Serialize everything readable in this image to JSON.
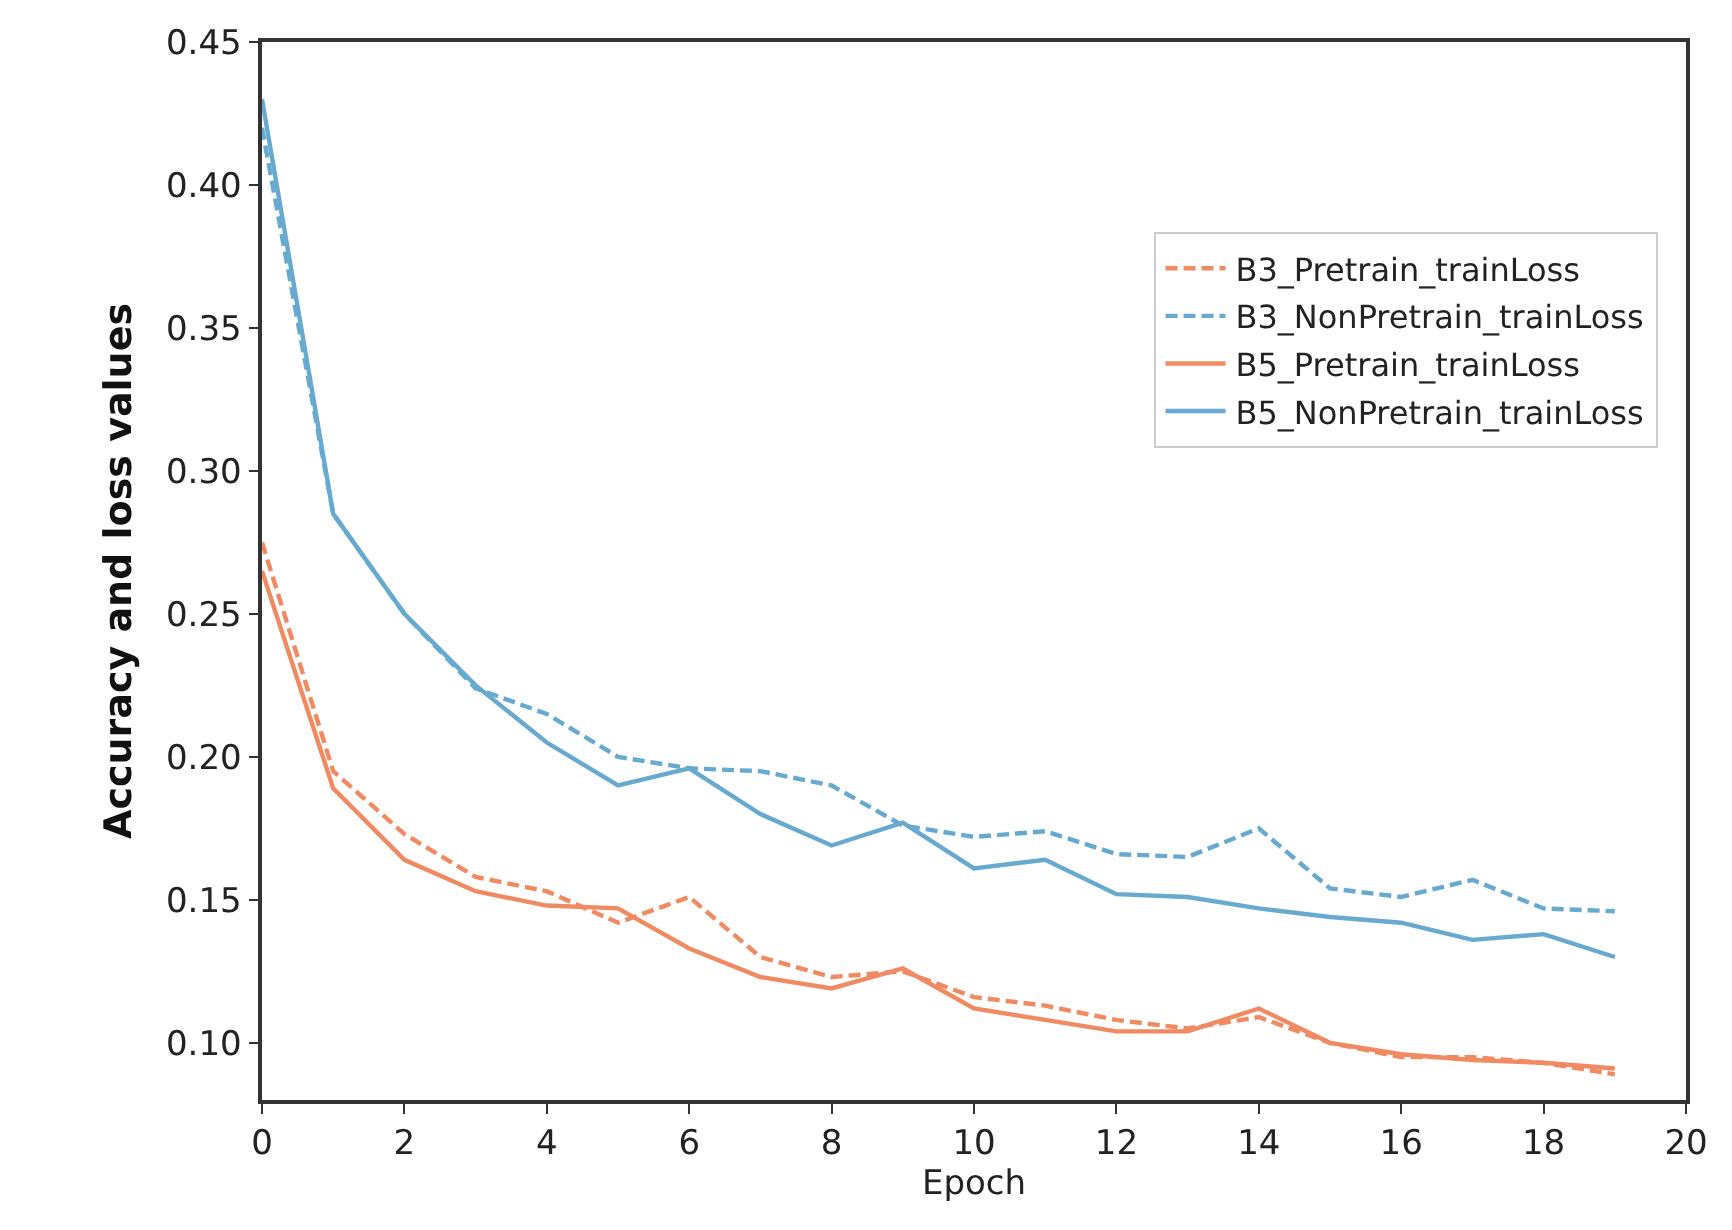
{
  "chart_data": {
    "type": "line",
    "xlabel": "Epoch",
    "ylabel": "Accuracy and loss values",
    "x": [
      0,
      1,
      2,
      3,
      4,
      5,
      6,
      7,
      8,
      9,
      10,
      11,
      12,
      13,
      14,
      15,
      16,
      17,
      18,
      19
    ],
    "series": [
      {
        "name": "B3_Pretrain_trainLoss",
        "color": "#ef8a62",
        "line_style": "dashed",
        "values": [
          0.275,
          0.195,
          0.173,
          0.158,
          0.153,
          0.142,
          0.151,
          0.13,
          0.123,
          0.125,
          0.116,
          0.113,
          0.108,
          0.105,
          0.109,
          0.1,
          0.095,
          0.095,
          0.093,
          0.089
        ]
      },
      {
        "name": "B3_NonPretrain_trainLoss",
        "color": "#67a9cf",
        "line_style": "dashed",
        "values": [
          0.42,
          0.285,
          0.25,
          0.224,
          0.215,
          0.2,
          0.196,
          0.195,
          0.19,
          0.176,
          0.172,
          0.174,
          0.166,
          0.165,
          0.175,
          0.154,
          0.151,
          0.157,
          0.147,
          0.146
        ]
      },
      {
        "name": "B5_Pretrain_trainLoss",
        "color": "#ef8a62",
        "line_style": "solid",
        "values": [
          0.265,
          0.189,
          0.164,
          0.153,
          0.148,
          0.147,
          0.133,
          0.123,
          0.119,
          0.126,
          0.112,
          0.108,
          0.104,
          0.104,
          0.112,
          0.1,
          0.096,
          0.094,
          0.093,
          0.091
        ]
      },
      {
        "name": "B5_NonPretrain_trainLoss",
        "color": "#67a9cf",
        "line_style": "solid",
        "values": [
          0.43,
          0.285,
          0.25,
          0.225,
          0.205,
          0.19,
          0.196,
          0.18,
          0.169,
          0.177,
          0.161,
          0.164,
          0.152,
          0.151,
          0.147,
          0.144,
          0.142,
          0.136,
          0.138,
          0.13
        ]
      }
    ],
    "xlim": [
      0,
      20
    ],
    "xticks": [
      0,
      2,
      4,
      6,
      8,
      10,
      12,
      14,
      16,
      18,
      20
    ],
    "ylim": [
      0.08,
      0.45
    ],
    "yticks": [
      {
        "value": 0.1,
        "label": "0.10"
      },
      {
        "value": 0.15,
        "label": "0.15"
      },
      {
        "value": 0.2,
        "label": "0.20"
      },
      {
        "value": 0.25,
        "label": "0.25"
      },
      {
        "value": 0.3,
        "label": "0.30"
      },
      {
        "value": 0.35,
        "label": "0.35"
      },
      {
        "value": 0.4,
        "label": "0.40"
      },
      {
        "value": 0.45,
        "label": "0.45"
      }
    ],
    "grid": false,
    "legend": "top right",
    "marker": "none"
  }
}
